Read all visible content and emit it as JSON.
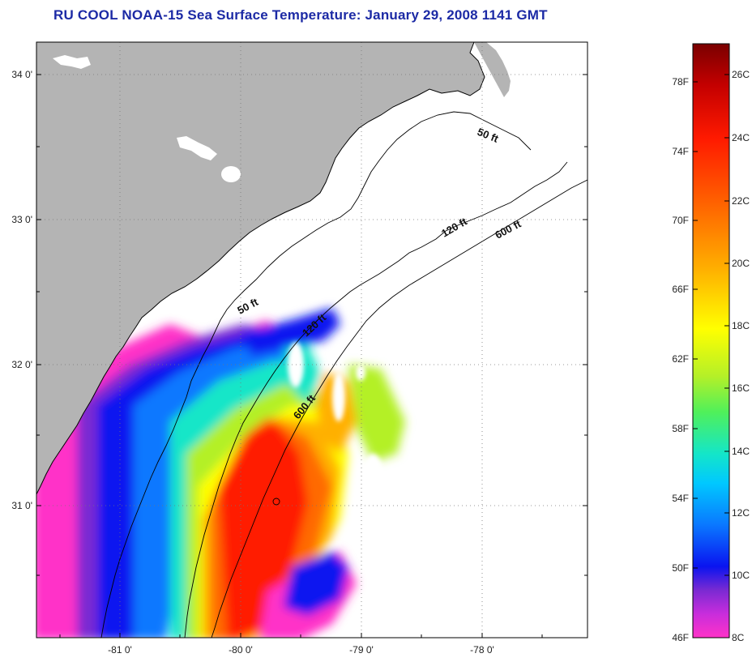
{
  "title": "RU COOL  NOAA-15  Sea Surface Temperature:  January 29, 2008 1141 GMT",
  "map": {
    "lat_labels": [
      "34 0'",
      "33 0'",
      "32 0'",
      "31 0'"
    ],
    "lon_labels": [
      "-81 0'",
      "-80 0'",
      "-79 0'",
      "-78 0'"
    ],
    "isobaths": {
      "shallow": [
        "50 ft",
        "50 ft"
      ],
      "mid": [
        "120 ft",
        "120 ft"
      ],
      "deep": [
        "600 ft",
        "600 ft"
      ]
    },
    "colors": {
      "land": "#b4b4b4",
      "cloud_or_nodata": "#ffffff",
      "frame": "#000000"
    }
  },
  "colorbar": {
    "fahrenheit_labels": [
      "78F",
      "74F",
      "70F",
      "66F",
      "62F",
      "58F",
      "54F",
      "50F",
      "46F"
    ],
    "celsius_labels": [
      "26C",
      "24C",
      "22C",
      "20C",
      "18C",
      "16C",
      "14C",
      "12C",
      "10C",
      "8C"
    ],
    "gradient_colors_top_to_bottom": [
      "#7a0000",
      "#c40000",
      "#ff1a00",
      "#ff6a00",
      "#ffb000",
      "#ffff00",
      "#b4f028",
      "#50f05a",
      "#14e6c8",
      "#00c8ff",
      "#0a78ff",
      "#0a14f0",
      "#7a2ad2",
      "#c82ddc",
      "#ff32c8"
    ]
  }
}
